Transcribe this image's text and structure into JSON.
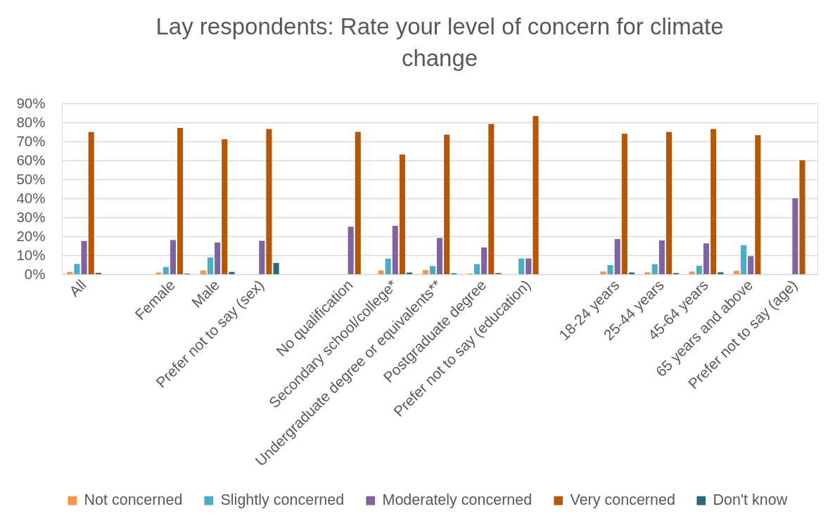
{
  "chart_data": {
    "type": "bar",
    "title": "Lay respondents: Rate your level of concern for climate change",
    "categories": [
      "All",
      null,
      "Female",
      "Male",
      "Prefer not to say (sex)",
      null,
      "No qualification",
      "Secondary school/college*",
      "Undergraduate degree or equivalents**",
      "Postgraduate degree",
      "Prefer not to say (education)",
      null,
      "18-24 years",
      "25-44 years",
      "45-64 years",
      "65 years and above",
      "Prefer not to say (age)"
    ],
    "series": [
      {
        "name": "Not concerned",
        "color": "#f79646",
        "values": [
          1.2,
          null,
          0.9,
          2.0,
          0,
          null,
          0,
          2.0,
          2.2,
          0.3,
          0,
          null,
          1.4,
          1.0,
          1.4,
          1.8,
          0
        ]
      },
      {
        "name": "Slightly concerned",
        "color": "#4bacc6",
        "values": [
          5.4,
          null,
          3.8,
          8.8,
          0,
          null,
          0,
          8.2,
          4.3,
          5.3,
          8.3,
          null,
          4.8,
          5.3,
          4.4,
          15.3,
          0
        ]
      },
      {
        "name": "Moderately concerned",
        "color": "#8064a2",
        "values": [
          17.5,
          null,
          18.0,
          16.7,
          17.6,
          null,
          25,
          25.5,
          19.1,
          14.1,
          8.3,
          null,
          18.5,
          17.8,
          16.2,
          9.5,
          40
        ]
      },
      {
        "name": "Very concerned",
        "color": "#b65708",
        "values": [
          74.9,
          null,
          77.0,
          71.1,
          76.5,
          null,
          75,
          63.1,
          73.5,
          79.2,
          83.3,
          null,
          74.0,
          74.9,
          76.5,
          73.2,
          60
        ]
      },
      {
        "name": "Don't know",
        "color": "#276a7c",
        "values": [
          0.7,
          null,
          0.3,
          1.2,
          5.9,
          null,
          0,
          0.9,
          0.5,
          0.6,
          0,
          null,
          0.9,
          0.6,
          1.0,
          0,
          0
        ]
      }
    ],
    "ylim": [
      0,
      90
    ],
    "yticks": [
      {
        "value": 0,
        "label": "0%"
      },
      {
        "value": 10,
        "label": "10%"
      },
      {
        "value": 20,
        "label": "20%"
      },
      {
        "value": 30,
        "label": "30%"
      },
      {
        "value": 40,
        "label": "40%"
      },
      {
        "value": 50,
        "label": "50%"
      },
      {
        "value": 60,
        "label": "60%"
      },
      {
        "value": 70,
        "label": "70%"
      },
      {
        "value": 80,
        "label": "80%"
      },
      {
        "value": 90,
        "label": "90%"
      }
    ],
    "grid": "y",
    "legend": "bottom"
  }
}
